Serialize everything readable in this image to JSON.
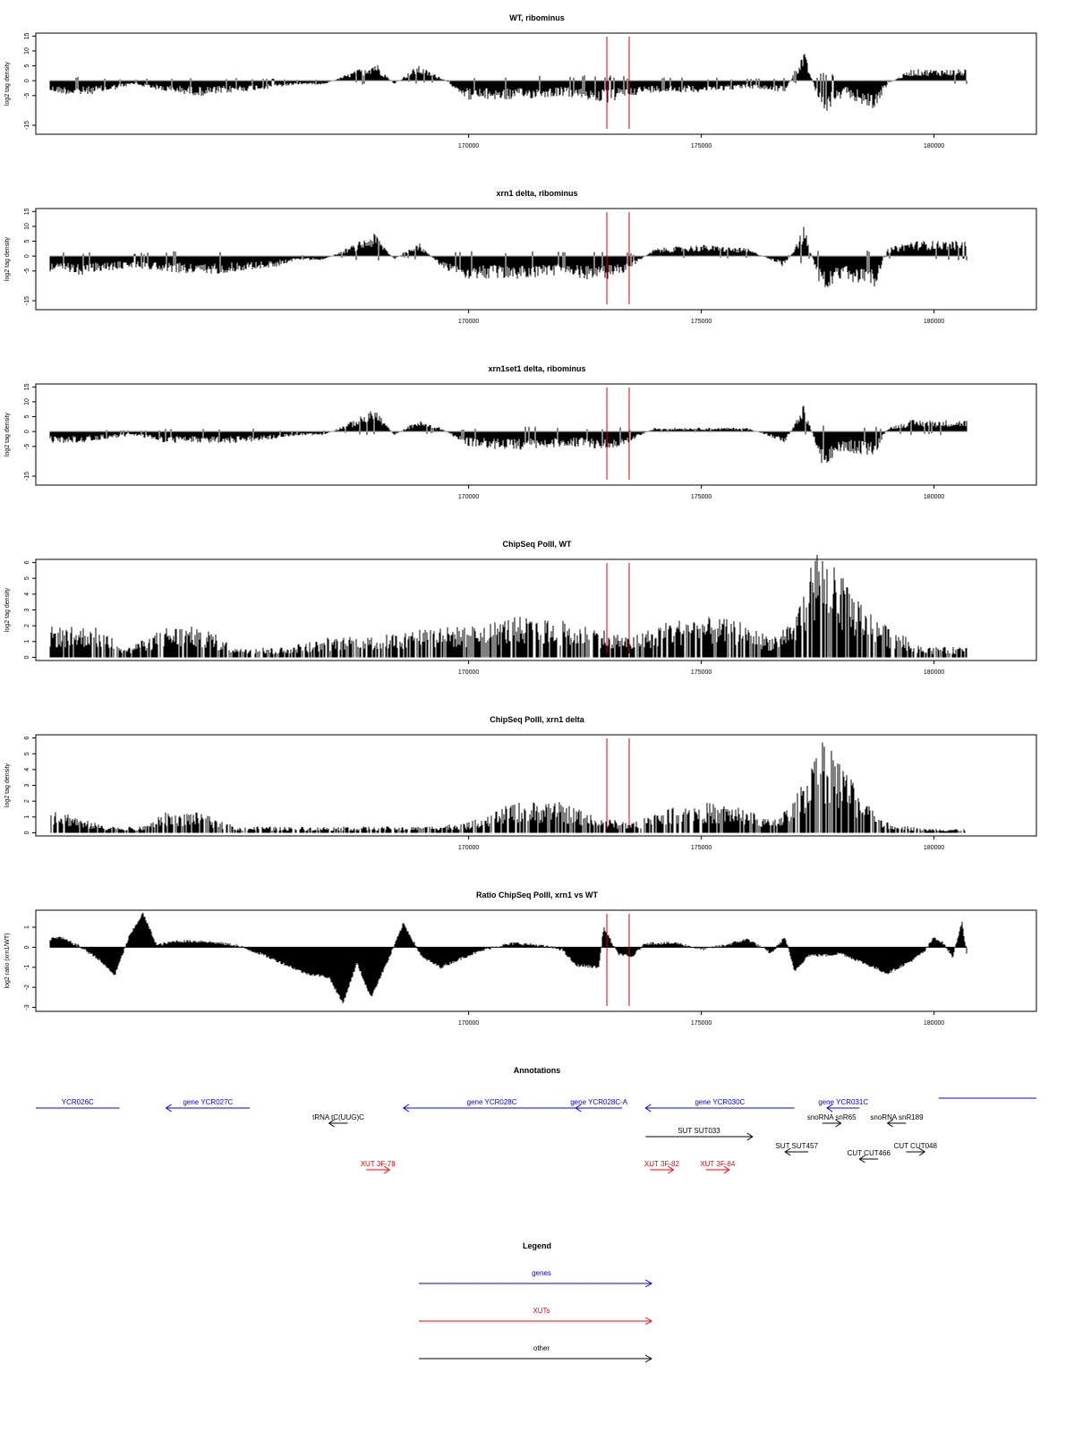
{
  "colors": {
    "bars": "#000000",
    "marker": "#e00000",
    "gene": "#0000ff",
    "xut": "#ff0000",
    "other": "#000000",
    "baseline": "#999999"
  },
  "markers": [
    172970,
    173450
  ],
  "x_axis": {
    "range": [
      160700,
      182200
    ],
    "ticks": [
      170000,
      175000,
      180000
    ],
    "tick_labels": [
      "170000",
      "175000",
      "180000"
    ]
  },
  "panels": [
    {
      "id": "wt-ribominus",
      "title": "WT, ribominus",
      "ylabel": "log2 tag density",
      "ylim": [
        -18,
        16
      ],
      "yticks": [
        15,
        10,
        5,
        0,
        -5,
        -15
      ],
      "ytick_labels": [
        "15",
        "10",
        "5",
        "0",
        "-5",
        "-15"
      ]
    },
    {
      "id": "xrn1-ribominus",
      "title": "xrn1 delta, ribominus",
      "ylabel": "log2 tag density",
      "ylim": [
        -18,
        16
      ],
      "yticks": [
        15,
        10,
        5,
        0,
        -5,
        -15
      ],
      "ytick_labels": [
        "15",
        "10",
        "5",
        "0",
        "-5",
        "-15"
      ]
    },
    {
      "id": "xrn1set1-ribominus",
      "title": "xrn1set1 delta, ribominus",
      "ylabel": "log2 tag density",
      "ylim": [
        -18,
        16
      ],
      "yticks": [
        15,
        10,
        5,
        0,
        -5,
        -15
      ],
      "ytick_labels": [
        "15",
        "10",
        "5",
        "0",
        "-5",
        "-15"
      ]
    },
    {
      "id": "chipseq-wt",
      "title": "ChipSeq PolII, WT",
      "ylabel": "log2 tag density",
      "ylim": [
        -0.2,
        6.2
      ],
      "yticks": [
        6,
        5,
        4,
        3,
        2,
        1,
        0
      ],
      "ytick_labels": [
        "6",
        "5",
        "4",
        "3",
        "2",
        "1",
        "0"
      ]
    },
    {
      "id": "chipseq-xrn1",
      "title": "ChipSeq PolII, xrn1 delta",
      "ylabel": "log2 tag density",
      "ylim": [
        -0.2,
        6.2
      ],
      "yticks": [
        6,
        5,
        4,
        3,
        2,
        1,
        0
      ],
      "ytick_labels": [
        "6",
        "5",
        "4",
        "3",
        "2",
        "1",
        "0"
      ]
    },
    {
      "id": "ratio",
      "title": "Ratio ChipSeq PolII, xrn1 vs WT",
      "ylabel": "log2 ratio (xrn1/WT)",
      "ylim": [
        -3.2,
        1.85
      ],
      "yticks": [
        1,
        0,
        -1,
        -2,
        -3
      ],
      "ytick_labels": [
        "1",
        "0",
        "-1",
        "-2",
        "-3"
      ]
    }
  ],
  "chart_data": [
    {
      "type": "bar",
      "title": "WT, ribominus",
      "ylabel": "log2 tag density",
      "xlim": [
        160700,
        182200
      ],
      "ylim": [
        -18,
        16
      ],
      "profile": [
        [
          161000,
          -3
        ],
        [
          161600,
          -4
        ],
        [
          162200,
          -3
        ],
        [
          162800,
          -1
        ],
        [
          163500,
          -3
        ],
        [
          164300,
          -4
        ],
        [
          165000,
          -3
        ],
        [
          165800,
          -2
        ],
        [
          166300,
          -1
        ],
        [
          166900,
          -1
        ],
        [
          168000,
          5
        ],
        [
          168400,
          -1
        ],
        [
          168900,
          4
        ],
        [
          169400,
          1
        ],
        [
          170000,
          -5
        ],
        [
          171000,
          -5
        ],
        [
          172000,
          -4
        ],
        [
          172500,
          -5
        ],
        [
          173000,
          -6
        ],
        [
          173400,
          -4
        ],
        [
          174000,
          -3
        ],
        [
          175000,
          -3
        ],
        [
          176000,
          -2
        ],
        [
          176800,
          -3
        ],
        [
          177200,
          8
        ],
        [
          177600,
          -9
        ],
        [
          178100,
          -4
        ],
        [
          178700,
          -8
        ],
        [
          179000,
          -1
        ],
        [
          179500,
          3
        ],
        [
          180500,
          3
        ],
        [
          180700,
          3
        ]
      ]
    },
    {
      "type": "bar",
      "title": "xrn1 delta, ribominus",
      "ylabel": "log2 tag density",
      "xlim": [
        160700,
        182200
      ],
      "ylim": [
        -18,
        16
      ],
      "profile": [
        [
          161000,
          -4
        ],
        [
          161600,
          -5
        ],
        [
          162200,
          -4
        ],
        [
          162800,
          -3
        ],
        [
          163500,
          -4
        ],
        [
          164300,
          -5
        ],
        [
          165000,
          -4
        ],
        [
          165800,
          -3
        ],
        [
          166300,
          -1
        ],
        [
          166900,
          -1
        ],
        [
          168000,
          6
        ],
        [
          168400,
          -1
        ],
        [
          168900,
          4
        ],
        [
          169400,
          -3
        ],
        [
          170000,
          -6
        ],
        [
          171000,
          -6
        ],
        [
          172000,
          -5
        ],
        [
          172500,
          -6
        ],
        [
          173000,
          -6
        ],
        [
          173400,
          -4
        ],
        [
          174000,
          2
        ],
        [
          175000,
          3
        ],
        [
          176000,
          2
        ],
        [
          176800,
          -3
        ],
        [
          177200,
          8
        ],
        [
          177600,
          -10
        ],
        [
          178100,
          -6
        ],
        [
          178700,
          -9
        ],
        [
          179000,
          2
        ],
        [
          179500,
          4
        ],
        [
          180500,
          4
        ],
        [
          180700,
          4
        ]
      ]
    },
    {
      "type": "bar",
      "title": "xrn1set1 delta, ribominus",
      "ylabel": "log2 tag density",
      "xlim": [
        160700,
        182200
      ],
      "ylim": [
        -18,
        16
      ],
      "profile": [
        [
          161000,
          -3
        ],
        [
          161600,
          -3
        ],
        [
          162200,
          -2
        ],
        [
          162800,
          -1
        ],
        [
          163500,
          -3
        ],
        [
          164300,
          -3
        ],
        [
          165000,
          -3
        ],
        [
          165800,
          -2
        ],
        [
          166300,
          -1
        ],
        [
          166900,
          -1
        ],
        [
          168000,
          6
        ],
        [
          168400,
          -1
        ],
        [
          168900,
          3
        ],
        [
          169400,
          1
        ],
        [
          170000,
          -4
        ],
        [
          171000,
          -5
        ],
        [
          172000,
          -4
        ],
        [
          172500,
          -4
        ],
        [
          173000,
          -5
        ],
        [
          173400,
          -3
        ],
        [
          174000,
          1
        ],
        [
          175000,
          1
        ],
        [
          176000,
          1
        ],
        [
          176800,
          -3
        ],
        [
          177200,
          7
        ],
        [
          177600,
          -9
        ],
        [
          178100,
          -5
        ],
        [
          178700,
          -7
        ],
        [
          179000,
          1
        ],
        [
          179500,
          3
        ],
        [
          180500,
          3
        ],
        [
          180700,
          3
        ]
      ]
    },
    {
      "type": "bar",
      "title": "ChipSeq PolII, WT",
      "ylabel": "log2 tag density",
      "xlim": [
        160700,
        182200
      ],
      "ylim": [
        -0.2,
        6.2
      ],
      "profile": [
        [
          161000,
          1.5
        ],
        [
          162000,
          1.5
        ],
        [
          162700,
          0.5
        ],
        [
          163500,
          1.5
        ],
        [
          164300,
          1.5
        ],
        [
          165000,
          0.5
        ],
        [
          166000,
          0.5
        ],
        [
          167000,
          1
        ],
        [
          168000,
          1
        ],
        [
          169000,
          1.5
        ],
        [
          170000,
          1.5
        ],
        [
          171000,
          2
        ],
        [
          172000,
          1.8
        ],
        [
          172700,
          1.5
        ],
        [
          173500,
          1
        ],
        [
          174300,
          1.8
        ],
        [
          175000,
          2
        ],
        [
          175800,
          1.8
        ],
        [
          176500,
          1
        ],
        [
          177000,
          2
        ],
        [
          177500,
          5.5
        ],
        [
          178000,
          4
        ],
        [
          178500,
          2.5
        ],
        [
          179000,
          1.5
        ],
        [
          179800,
          0.5
        ],
        [
          180700,
          0.5
        ]
      ]
    },
    {
      "type": "bar",
      "title": "ChipSeq PolII, xrn1 delta",
      "ylabel": "log2 tag density",
      "xlim": [
        160700,
        182200
      ],
      "ylim": [
        -0.2,
        6.2
      ],
      "profile": [
        [
          161000,
          1.3
        ],
        [
          161600,
          0.8
        ],
        [
          162200,
          0.3
        ],
        [
          163000,
          0.3
        ],
        [
          163500,
          1
        ],
        [
          164200,
          1
        ],
        [
          165000,
          0.3
        ],
        [
          166000,
          0.3
        ],
        [
          167000,
          0.3
        ],
        [
          168000,
          0.3
        ],
        [
          169000,
          0.3
        ],
        [
          170000,
          0.5
        ],
        [
          171000,
          1.5
        ],
        [
          172000,
          1.5
        ],
        [
          172700,
          0.8
        ],
        [
          173500,
          0.5
        ],
        [
          174300,
          1.3
        ],
        [
          175000,
          1.5
        ],
        [
          175800,
          1.3
        ],
        [
          176500,
          0.6
        ],
        [
          177000,
          1.5
        ],
        [
          177500,
          5
        ],
        [
          178000,
          3.5
        ],
        [
          178500,
          1.5
        ],
        [
          179000,
          0.5
        ],
        [
          179800,
          0.2
        ],
        [
          180700,
          0.2
        ]
      ]
    },
    {
      "type": "area",
      "title": "Ratio ChipSeq PolII, xrn1 vs WT",
      "ylabel": "log2 ratio (xrn1/WT)",
      "xlim": [
        160700,
        182200
      ],
      "ylim": [
        -3.2,
        1.85
      ],
      "profile": [
        [
          160800,
          0.3
        ],
        [
          161200,
          0.5
        ],
        [
          161600,
          0.1
        ],
        [
          162000,
          -0.5
        ],
        [
          162400,
          -1.4
        ],
        [
          162700,
          0.5
        ],
        [
          163000,
          1.7
        ],
        [
          163300,
          0.1
        ],
        [
          163700,
          0.3
        ],
        [
          164300,
          0.3
        ],
        [
          165000,
          0.1
        ],
        [
          165500,
          -0.3
        ],
        [
          166000,
          -0.8
        ],
        [
          166500,
          -1.3
        ],
        [
          167000,
          -1.5
        ],
        [
          167300,
          -2.8
        ],
        [
          167600,
          -0.8
        ],
        [
          167900,
          -2.5
        ],
        [
          168300,
          -0.5
        ],
        [
          168600,
          1.2
        ],
        [
          169000,
          -0.5
        ],
        [
          169400,
          -1
        ],
        [
          170000,
          -0.4
        ],
        [
          170500,
          0
        ],
        [
          171000,
          0.2
        ],
        [
          171500,
          0.1
        ],
        [
          172000,
          -0.1
        ],
        [
          172300,
          -0.9
        ],
        [
          172800,
          -1
        ],
        [
          172900,
          1
        ],
        [
          173200,
          -0.3
        ],
        [
          173500,
          -0.5
        ],
        [
          173800,
          0.2
        ],
        [
          174500,
          0.2
        ],
        [
          175000,
          -0.1
        ],
        [
          175500,
          0.1
        ],
        [
          176000,
          0.4
        ],
        [
          176500,
          -0.3
        ],
        [
          176800,
          0.5
        ],
        [
          177000,
          -1.2
        ],
        [
          177300,
          -0.4
        ],
        [
          177700,
          -0.4
        ],
        [
          178000,
          -0.3
        ],
        [
          178500,
          -0.8
        ],
        [
          179000,
          -1.3
        ],
        [
          179500,
          -0.7
        ],
        [
          179800,
          -0.2
        ],
        [
          180000,
          0.5
        ],
        [
          180200,
          0.2
        ],
        [
          180400,
          -0.5
        ],
        [
          180600,
          1.3
        ],
        [
          180700,
          -0.3
        ]
      ]
    }
  ],
  "annotations_title": "Annotations",
  "annotations": [
    {
      "label": "YCR026C",
      "type": "gene",
      "x1": 160700,
      "x2": 162500,
      "dir": "none",
      "row": 0
    },
    {
      "label": "gene YCR027C",
      "type": "gene",
      "x1": 163500,
      "x2": 165300,
      "dir": "left",
      "row": 0
    },
    {
      "label": "tRNA tC(UUG)C",
      "type": "other",
      "x1": 167000,
      "x2": 167400,
      "dir": "left",
      "row": 1
    },
    {
      "label": "gene YCR028C",
      "type": "gene",
      "x1": 168600,
      "x2": 172400,
      "dir": "left",
      "row": 0
    },
    {
      "label": "gene YCR028C-A",
      "type": "gene",
      "x1": 172300,
      "x2": 173300,
      "dir": "left",
      "row": 0
    },
    {
      "label": "gene YCR030C",
      "type": "gene",
      "x1": 173800,
      "x2": 177000,
      "dir": "left",
      "row": 0
    },
    {
      "label": "SUT SUT033",
      "type": "other",
      "x1": 173800,
      "x2": 176100,
      "dir": "right",
      "row": 2
    },
    {
      "label": "snoRNA snR65",
      "type": "other",
      "x1": 177600,
      "x2": 178000,
      "dir": "right",
      "row": 1
    },
    {
      "label": "gene YCR031C",
      "type": "gene",
      "x1": 177700,
      "x2": 178400,
      "dir": "left",
      "row": 0
    },
    {
      "label": "snoRNA snR189",
      "type": "other",
      "x1": 179000,
      "x2": 179400,
      "dir": "left",
      "row": 1
    },
    {
      "label": "SUT SUT457",
      "type": "other",
      "x1": 176800,
      "x2": 177300,
      "dir": "left",
      "row": 3
    },
    {
      "label": "CUT CUT466",
      "type": "other",
      "x1": 178400,
      "x2": 178800,
      "dir": "left",
      "row": 4
    },
    {
      "label": "CUT CUT048",
      "type": "other",
      "x1": 179400,
      "x2": 179800,
      "dir": "right",
      "row": 3
    },
    {
      "label": "",
      "type": "gene",
      "x1": 180100,
      "x2": 182200,
      "dir": "none",
      "row": -1
    },
    {
      "label": "XUT 3F-78",
      "type": "xut",
      "x1": 167800,
      "x2": 168300,
      "dir": "right",
      "row": 5
    },
    {
      "label": "XUT 3F-82",
      "type": "xut",
      "x1": 173900,
      "x2": 174400,
      "dir": "right",
      "row": 5
    },
    {
      "label": "XUT 3F-84",
      "type": "xut",
      "x1": 175100,
      "x2": 175600,
      "dir": "right",
      "row": 5
    }
  ],
  "legend": {
    "title": "Legend",
    "items": [
      {
        "label": "genes",
        "type": "gene"
      },
      {
        "label": "XUTs",
        "type": "xut"
      },
      {
        "label": "other",
        "type": "other"
      }
    ]
  }
}
